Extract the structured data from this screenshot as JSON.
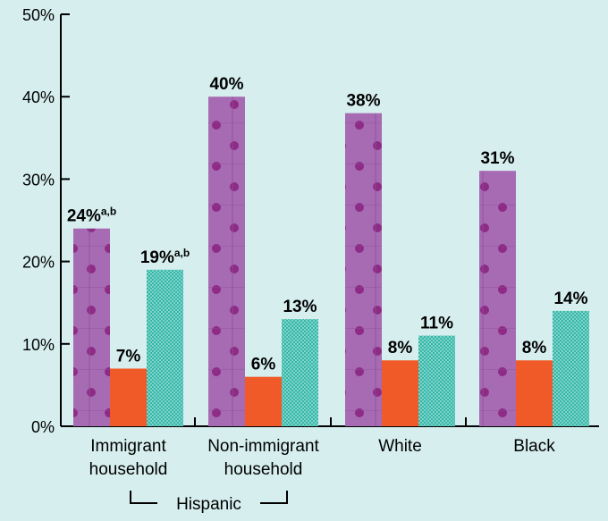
{
  "colors": {
    "background": "#d6eeee",
    "series1": "#a76bb3",
    "series1_dots": "#8e2b86",
    "series2": "#f05a28",
    "series3": "#35b8aa",
    "axis": "#000000"
  },
  "chart_data": {
    "type": "bar",
    "title": "",
    "xlabel": "",
    "ylabel": "",
    "ylim": [
      0,
      50
    ],
    "y_ticks": [
      0,
      10,
      20,
      30,
      40,
      50
    ],
    "y_tick_labels": [
      "0%",
      "10%",
      "20%",
      "30%",
      "40%",
      "50%"
    ],
    "grid": false,
    "legend": "none",
    "categories": [
      [
        "Immigrant",
        "household"
      ],
      [
        "Non-immigrant",
        "household"
      ],
      [
        "White"
      ],
      [
        "Black"
      ]
    ],
    "series": [
      {
        "values": [
          24,
          40,
          38,
          31
        ],
        "labels": [
          "24%",
          "40%",
          "38%",
          "31%"
        ],
        "label_sup": [
          "a,b",
          "",
          "",
          ""
        ]
      },
      {
        "values": [
          7,
          6,
          8,
          8
        ],
        "labels": [
          "7%",
          "6%",
          "8%",
          "8%"
        ],
        "label_sup": [
          "",
          "",
          "",
          ""
        ]
      },
      {
        "values": [
          19,
          13,
          11,
          14
        ],
        "labels": [
          "19%",
          "13%",
          "11%",
          "14%"
        ],
        "label_sup": [
          "a,b",
          "",
          "",
          ""
        ]
      }
    ],
    "group_bracket": {
      "label": "Hispanic",
      "spans_categories": [
        0,
        1
      ]
    }
  }
}
